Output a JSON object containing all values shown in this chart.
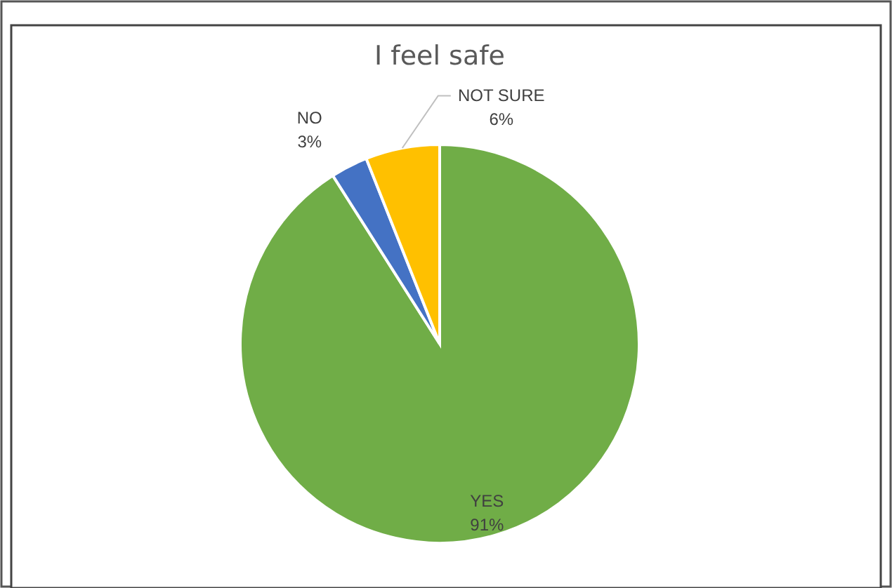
{
  "chart_data": {
    "type": "pie",
    "title": "I feel safe",
    "categories": [
      "YES",
      "NO",
      "NOT SURE"
    ],
    "values": [
      91,
      3,
      6
    ],
    "colors": [
      "#70ad47",
      "#4472c4",
      "#ffc000"
    ],
    "value_labels": [
      "91%",
      "3%",
      "6%"
    ]
  }
}
